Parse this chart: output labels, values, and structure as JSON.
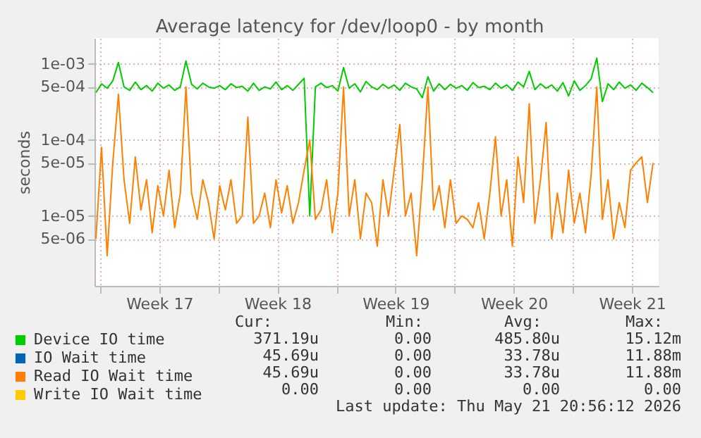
{
  "chart_data": {
    "type": "line",
    "title": "Average latency for /dev/loop0 - by month",
    "ylabel": "seconds",
    "log": "y",
    "grid": true,
    "legend": "bottom",
    "x": [
      "2026-04-19T18:00",
      "2026-04-20T02:00",
      "2026-04-20T10:00",
      "2026-04-20T18:00",
      "2026-04-21T02:00",
      "2026-04-21T10:00",
      "2026-04-21T18:00",
      "2026-04-22T02:00",
      "2026-04-22T10:00",
      "2026-04-22T18:00",
      "2026-04-23T02:00",
      "2026-04-23T10:00",
      "2026-04-23T18:00",
      "2026-04-24T02:00",
      "2026-04-24T10:00",
      "2026-04-24T18:00",
      "2026-04-25T02:00",
      "2026-04-25T10:00",
      "2026-04-25T18:00",
      "2026-04-26T02:00",
      "2026-04-26T10:00",
      "2026-04-26T18:00",
      "2026-04-27T02:00",
      "2026-04-27T10:00",
      "2026-04-27T18:00",
      "2026-04-28T02:00",
      "2026-04-28T10:00",
      "2026-04-28T18:00",
      "2026-04-29T02:00",
      "2026-04-29T10:00",
      "2026-04-29T18:00",
      "2026-04-30T02:00",
      "2026-04-30T10:00",
      "2026-04-30T18:00",
      "2026-05-01T02:00",
      "2026-05-01T10:00",
      "2026-05-01T18:00",
      "2026-05-02T02:00",
      "2026-05-02T10:00",
      "2026-05-02T18:00",
      "2026-05-03T02:00",
      "2026-05-03T10:00",
      "2026-05-03T18:00",
      "2026-05-04T02:00",
      "2026-05-04T10:00",
      "2026-05-04T18:00",
      "2026-05-05T02:00",
      "2026-05-05T10:00",
      "2026-05-05T18:00",
      "2026-05-06T02:00",
      "2026-05-06T10:00",
      "2026-05-06T18:00",
      "2026-05-07T02:00",
      "2026-05-07T10:00",
      "2026-05-07T18:00",
      "2026-05-08T02:00",
      "2026-05-08T10:00",
      "2026-05-08T18:00",
      "2026-05-09T02:00",
      "2026-05-09T10:00",
      "2026-05-09T18:00",
      "2026-05-10T02:00",
      "2026-05-10T10:00",
      "2026-05-10T18:00",
      "2026-05-11T02:00",
      "2026-05-11T10:00",
      "2026-05-11T18:00",
      "2026-05-12T02:00",
      "2026-05-12T10:00",
      "2026-05-12T18:00",
      "2026-05-13T02:00",
      "2026-05-13T10:00",
      "2026-05-13T18:00",
      "2026-05-14T02:00",
      "2026-05-14T10:00",
      "2026-05-14T18:00",
      "2026-05-15T02:00",
      "2026-05-15T10:00",
      "2026-05-15T18:00",
      "2026-05-16T02:00",
      "2026-05-16T10:00",
      "2026-05-16T18:00",
      "2026-05-17T02:00",
      "2026-05-17T10:00",
      "2026-05-17T18:00",
      "2026-05-18T02:00",
      "2026-05-18T10:00",
      "2026-05-18T18:00",
      "2026-05-19T02:00",
      "2026-05-19T10:00",
      "2026-05-19T18:00",
      "2026-05-20T02:00",
      "2026-05-20T10:00",
      "2026-05-20T18:00",
      "2026-05-21T02:00",
      "2026-05-21T10:00",
      "2026-05-21T18:00",
      "2026-05-22T02:00",
      "2026-05-22T10:00",
      "2026-05-22T18:00"
    ],
    "xlim": [
      "2026-04-19T16:00",
      "2026-05-23T02:00"
    ],
    "xticks": [
      {
        "value": "2026-04-20T00:00",
        "label": null
      },
      {
        "value": "2026-04-23T12:00",
        "label": "Week 17"
      },
      {
        "value": "2026-04-27T00:00",
        "label": null
      },
      {
        "value": "2026-04-30T12:00",
        "label": "Week 18"
      },
      {
        "value": "2026-05-04T00:00",
        "label": null
      },
      {
        "value": "2026-05-07T12:00",
        "label": "Week 19"
      },
      {
        "value": "2026-05-11T00:00",
        "label": null
      },
      {
        "value": "2026-05-14T12:00",
        "label": "Week 20"
      },
      {
        "value": "2026-05-18T00:00",
        "label": null
      },
      {
        "value": "2026-05-21T12:00",
        "label": "Week 21"
      }
    ],
    "ylim": [
      1.2e-06,
      0.0022
    ],
    "yticks": [
      {
        "value": 5e-06,
        "label": "5e-06"
      },
      {
        "value": 1e-05,
        "label": "1e-05"
      },
      {
        "value": 5e-05,
        "label": "5e-05"
      },
      {
        "value": 0.0001,
        "label": "1e-04"
      },
      {
        "value": 0.0005,
        "label": "5e-04"
      },
      {
        "value": 0.001,
        "label": "1e-03"
      }
    ],
    "series": [
      {
        "name": "Device IO time",
        "color": "#00cc00",
        "values": [
          0.00042,
          0.00055,
          0.00048,
          0.0006,
          0.00105,
          0.0005,
          0.00045,
          0.00058,
          0.00046,
          0.00052,
          0.00044,
          0.00056,
          0.00048,
          0.00053,
          0.00045,
          0.0005,
          0.0011,
          0.00054,
          0.00047,
          0.00056,
          0.0005,
          0.00048,
          0.00052,
          0.00046,
          0.00055,
          0.00049,
          0.00051,
          0.00044,
          0.00056,
          0.00045,
          0.0005,
          0.00047,
          0.00058,
          0.00046,
          0.00052,
          0.00045,
          0.00054,
          0.00065,
          1e-05,
          0.0005,
          0.00056,
          0.00049,
          0.00052,
          0.00044,
          0.0009,
          0.00048,
          0.00055,
          0.00043,
          0.00059,
          0.0005,
          0.00046,
          0.00054,
          0.00048,
          0.00053,
          0.00045,
          0.00056,
          0.0005,
          0.00047,
          0.00036,
          0.00068,
          0.00044,
          0.00055,
          0.00046,
          0.00054,
          0.00048,
          0.00052,
          0.00045,
          0.00057,
          0.00049,
          0.00051,
          0.00046,
          0.00056,
          0.00048,
          0.00053,
          0.00045,
          0.00058,
          0.0005,
          0.0008,
          0.00046,
          0.00055,
          0.00048,
          0.00053,
          0.00044,
          0.00057,
          0.00038,
          0.0006,
          0.00045,
          0.00052,
          0.00064,
          0.0012,
          0.00032,
          0.00055,
          0.00046,
          0.00058,
          0.00048,
          0.00053,
          0.00045,
          0.00056,
          0.00049,
          0.00042
        ]
      },
      {
        "name": "IO Wait time",
        "color": "#0066b3",
        "values": [
          null,
          null,
          null,
          null,
          null,
          null,
          null,
          null,
          null,
          null,
          null,
          null,
          null,
          null,
          null,
          null,
          null,
          null,
          null,
          null,
          null,
          null,
          null,
          null,
          null,
          null,
          null,
          null,
          null,
          null,
          null,
          null,
          null,
          null,
          null,
          null,
          null,
          null,
          null,
          null,
          null,
          null,
          null,
          null,
          null,
          null,
          null,
          null,
          null,
          null,
          null,
          null,
          null,
          null,
          null,
          null,
          null,
          null,
          null,
          null,
          null,
          null,
          null,
          null,
          null,
          null,
          null,
          null,
          null,
          null,
          null,
          null,
          null,
          null,
          null,
          null,
          null,
          null,
          null,
          null,
          null,
          null,
          null,
          null,
          null,
          null,
          null,
          null,
          null,
          null,
          null,
          null,
          null,
          null,
          null,
          null,
          null,
          null,
          null,
          null
        ]
      },
      {
        "name": "Read IO Wait time",
        "color": "#ff8000",
        "values": [
          5e-06,
          8e-05,
          3e-06,
          5e-05,
          0.0004,
          3e-05,
          8e-06,
          6e-05,
          1.2e-05,
          3e-05,
          6e-06,
          2.5e-05,
          1e-05,
          4e-05,
          7e-06,
          2e-05,
          0.0005,
          2e-05,
          9e-06,
          3e-05,
          1.5e-05,
          5e-06,
          2.5e-05,
          1.2e-05,
          3e-05,
          8e-06,
          1e-05,
          0.0002,
          8e-06,
          1e-05,
          2e-05,
          7e-06,
          3e-05,
          1.1e-05,
          2.5e-05,
          8e-06,
          1.5e-05,
          4e-05,
          0.0001,
          9e-06,
          1.2e-05,
          3e-05,
          6e-06,
          2e-05,
          0.0005,
          1e-05,
          3e-05,
          5e-06,
          2e-05,
          1.5e-05,
          4e-06,
          3e-05,
          1e-05,
          4e-05,
          0.00016,
          1e-05,
          2e-05,
          3e-06,
          3e-05,
          0.0005,
          1.2e-05,
          2.5e-05,
          7e-06,
          3e-05,
          8e-06,
          1e-05,
          9e-06,
          7e-06,
          1.5e-05,
          5e-06,
          2e-05,
          0.00011,
          1e-05,
          3e-05,
          4e-06,
          6e-05,
          1.5e-05,
          0.0003,
          8e-06,
          3e-05,
          0.00017,
          5e-06,
          2e-05,
          6e-06,
          4e-05,
          8e-06,
          2e-05,
          6e-06,
          3.5e-05,
          0.0005,
          9e-06,
          3e-05,
          5e-06,
          1.5e-05,
          7e-06,
          4e-05,
          5e-05,
          6e-05,
          1.5e-05,
          5e-05
        ]
      },
      {
        "name": "Write IO Wait time",
        "color": "#ffcc00",
        "values": [
          null,
          null,
          null,
          null,
          null,
          null,
          null,
          null,
          null,
          null,
          null,
          null,
          null,
          null,
          null,
          null,
          null,
          null,
          null,
          null,
          null,
          null,
          null,
          null,
          null,
          null,
          null,
          null,
          null,
          null,
          null,
          null,
          null,
          null,
          null,
          null,
          null,
          null,
          null,
          null,
          null,
          null,
          null,
          null,
          null,
          null,
          null,
          null,
          null,
          null,
          null,
          null,
          null,
          null,
          null,
          null,
          null,
          null,
          null,
          null,
          null,
          null,
          null,
          null,
          null,
          null,
          null,
          null,
          null,
          null,
          null,
          null,
          null,
          null,
          null,
          null,
          null,
          null,
          null,
          null,
          null,
          null,
          null,
          null,
          null,
          null,
          null,
          null,
          null,
          null,
          null,
          null,
          null,
          null,
          null,
          null,
          null,
          null,
          null,
          null
        ]
      }
    ],
    "annotations": [
      "Cur:",
      "Min:",
      "Avg:",
      "Max:",
      "371.19u",
      "0.00",
      "485.80u",
      "15.12m",
      "45.69u",
      "0.00",
      "33.78u",
      "11.88m",
      "45.69u",
      "0.00",
      "33.78u",
      "11.88m",
      "0.00",
      "0.00",
      "0.00",
      "0.00",
      "Last update: Thu May 21 20:56:12 2026"
    ]
  }
}
